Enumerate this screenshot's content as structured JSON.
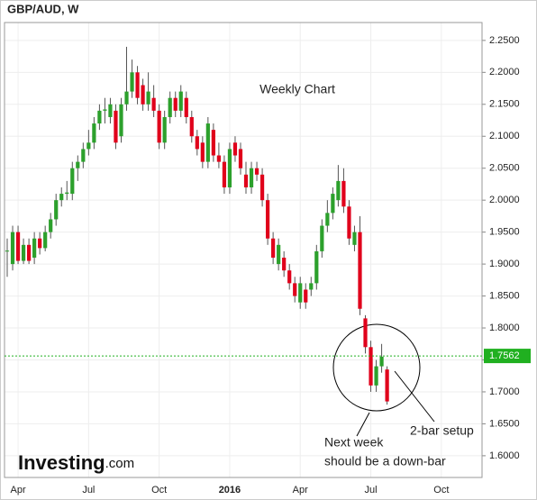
{
  "chart_data": {
    "type": "candlestick",
    "title": "GBP/AUD, W",
    "annotation": "Weekly Chart",
    "callouts": [
      "2-bar setup",
      "Next week",
      "should be a down-bar"
    ],
    "logo": [
      "Investing",
      ".com"
    ],
    "up_color": "#2ca02c",
    "down_color": "#e0001b",
    "grid": true,
    "current_price": {
      "value": 1.7562,
      "label": "1.7562"
    },
    "current_color": "#20b020",
    "ylim": [
      1.566,
      2.278
    ],
    "yticks": [
      {
        "value": 1.6,
        "label": "1.6000"
      },
      {
        "value": 1.65,
        "label": "1.6500"
      },
      {
        "value": 1.7,
        "label": "1.7000"
      },
      {
        "value": 1.75,
        "label": "1.7500"
      },
      {
        "value": 1.8,
        "label": "1.8000"
      },
      {
        "value": 1.85,
        "label": "1.8500"
      },
      {
        "value": 1.9,
        "label": "1.9000"
      },
      {
        "value": 1.95,
        "label": "1.9500"
      },
      {
        "value": 2.0,
        "label": "2.0000"
      },
      {
        "value": 2.05,
        "label": "2.0500"
      },
      {
        "value": 2.1,
        "label": "2.1000"
      },
      {
        "value": 2.15,
        "label": "2.1500"
      },
      {
        "value": 2.2,
        "label": "2.2000"
      },
      {
        "value": 2.25,
        "label": "2.2500"
      }
    ],
    "categories": [
      null,
      null,
      "Apr",
      null,
      null,
      null,
      null,
      null,
      null,
      null,
      null,
      null,
      null,
      null,
      null,
      "Jul",
      null,
      null,
      null,
      null,
      null,
      null,
      null,
      null,
      null,
      null,
      null,
      null,
      "Oct",
      null,
      null,
      null,
      null,
      null,
      null,
      null,
      null,
      null,
      null,
      null,
      null,
      "2016",
      null,
      null,
      null,
      null,
      null,
      null,
      null,
      null,
      null,
      null,
      null,
      null,
      "Apr",
      null,
      null,
      null,
      null,
      null,
      null,
      null,
      null,
      null,
      null,
      null,
      null,
      "Jul",
      null,
      null,
      null,
      null,
      null,
      null,
      null,
      null,
      null,
      null,
      null,
      null,
      "Oct",
      null,
      null,
      null,
      null,
      null,
      null,
      null
    ],
    "open": [
      1.92,
      1.9,
      1.95,
      1.905,
      1.93,
      1.91,
      1.94,
      1.925,
      1.95,
      1.97,
      2.0,
      2.01,
      2.01,
      2.05,
      2.06,
      2.08,
      2.09,
      2.12,
      2.14,
      2.13,
      2.14,
      2.1,
      2.15,
      2.17,
      2.2,
      2.18,
      2.15,
      2.16,
      2.14,
      2.09,
      2.13,
      2.16,
      2.14,
      2.16,
      2.13,
      2.1,
      2.09,
      2.06,
      2.11,
      2.07,
      2.06,
      2.02,
      2.09,
      2.08,
      2.04,
      2.02,
      2.05,
      2.04,
      2.0,
      1.94,
      1.9,
      1.91,
      1.89,
      1.87,
      1.84,
      1.86,
      1.86,
      1.87,
      1.92,
      1.96,
      1.98,
      2.0,
      2.03,
      1.99,
      1.93,
      1.95,
      1.815,
      1.77,
      1.71,
      1.74,
      1.735,
      null,
      null,
      null,
      null,
      null,
      null,
      null,
      null,
      null,
      null,
      null,
      null,
      null,
      null,
      null,
      null,
      null
    ],
    "high": [
      1.94,
      1.96,
      1.96,
      1.94,
      1.94,
      1.95,
      1.95,
      1.96,
      1.98,
      2.01,
      2.02,
      2.03,
      2.06,
      2.07,
      2.09,
      2.11,
      2.13,
      2.15,
      2.16,
      2.16,
      2.15,
      2.16,
      2.24,
      2.22,
      2.21,
      2.19,
      2.2,
      2.18,
      2.15,
      2.14,
      2.17,
      2.17,
      2.18,
      2.17,
      2.14,
      2.11,
      2.1,
      2.13,
      2.12,
      2.09,
      2.07,
      2.09,
      2.1,
      2.09,
      2.06,
      2.06,
      2.06,
      2.05,
      2.01,
      1.95,
      1.94,
      1.92,
      1.9,
      1.88,
      1.88,
      1.87,
      1.88,
      1.93,
      1.97,
      2.0,
      2.02,
      2.055,
      2.05,
      2.0,
      1.96,
      1.975,
      1.82,
      1.78,
      1.75,
      1.775,
      1.74,
      null,
      null,
      null,
      null,
      null,
      null,
      null,
      null,
      null,
      null,
      null,
      null,
      null,
      null,
      null,
      null,
      null
    ],
    "low": [
      1.88,
      1.89,
      1.9,
      1.9,
      1.9,
      1.9,
      1.915,
      1.92,
      1.94,
      1.96,
      1.99,
      2.0,
      2.0,
      2.03,
      2.05,
      2.07,
      2.08,
      2.11,
      2.12,
      2.12,
      2.08,
      2.09,
      2.14,
      2.16,
      2.15,
      2.14,
      2.14,
      2.13,
      2.08,
      2.08,
      2.12,
      2.13,
      2.13,
      2.12,
      2.09,
      2.07,
      2.05,
      2.05,
      2.06,
      2.05,
      2.01,
      2.01,
      2.06,
      2.04,
      2.01,
      2.01,
      2.03,
      1.99,
      1.93,
      1.9,
      1.89,
      1.88,
      1.86,
      1.84,
      1.83,
      1.83,
      1.85,
      1.86,
      1.91,
      1.95,
      1.97,
      1.99,
      1.98,
      1.93,
      1.92,
      1.82,
      1.76,
      1.7,
      1.7,
      1.73,
      1.68,
      null,
      null,
      null,
      null,
      null,
      null,
      null,
      null,
      null,
      null,
      null,
      null,
      null,
      null,
      null,
      null,
      null
    ],
    "close": [
      1.921,
      1.95,
      1.905,
      1.93,
      1.905,
      1.94,
      1.925,
      1.95,
      1.97,
      2.0,
      2.01,
      2.012,
      2.05,
      2.06,
      2.08,
      2.09,
      2.12,
      2.14,
      2.142,
      2.15,
      2.09,
      2.15,
      2.17,
      2.2,
      2.16,
      2.15,
      2.17,
      2.14,
      2.09,
      2.13,
      2.16,
      2.14,
      2.17,
      2.13,
      2.1,
      2.08,
      2.06,
      2.12,
      2.07,
      2.06,
      2.02,
      2.08,
      2.07,
      2.05,
      2.02,
      2.05,
      2.04,
      2.0,
      1.94,
      1.91,
      1.93,
      1.89,
      1.87,
      1.85,
      1.87,
      1.84,
      1.87,
      1.92,
      1.96,
      1.98,
      2.01,
      2.03,
      1.99,
      1.94,
      1.95,
      1.83,
      1.77,
      1.71,
      1.74,
      1.755,
      1.685,
      null,
      null,
      null,
      null,
      null,
      null,
      null,
      null,
      null,
      null,
      null,
      null,
      null,
      null,
      null,
      null,
      null
    ]
  }
}
